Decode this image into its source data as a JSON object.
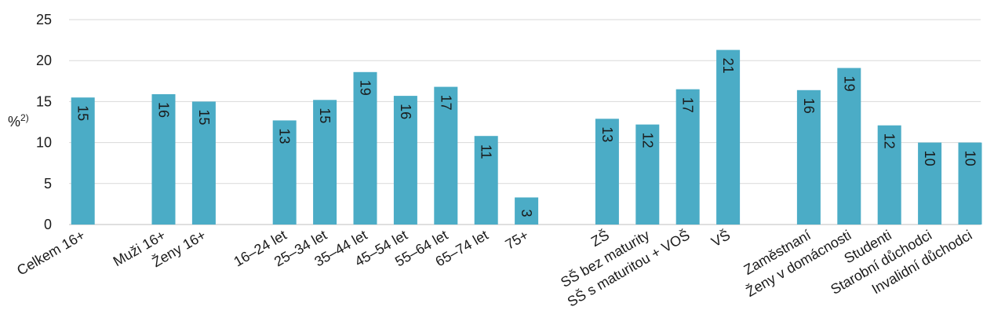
{
  "chart_data": {
    "type": "bar",
    "ylabel": "%",
    "ylabel_superscript": "2)",
    "ylim": [
      0,
      25
    ],
    "yticks": [
      0,
      5,
      10,
      15,
      20,
      25
    ],
    "grid": true,
    "bar_color": "#4bacc6",
    "grid_color": "#d9d9d9",
    "categories": [
      "Celkem 16+",
      "",
      "Muži 16+",
      "Ženy 16+",
      "",
      "16–24 let",
      "25–34 let",
      "35–44 let",
      "45–54 let",
      "55–64 let",
      "65–74 let",
      "75+",
      "",
      "ZŠ",
      "SŠ bez maturity",
      "SŠ s maturitou + VOŠ",
      "VŠ",
      "",
      "Zaměstnaní",
      "Ženy v domácnosti",
      "Studenti",
      "Starobní důchodci",
      "Invalidní důchodci"
    ],
    "values": [
      15.5,
      null,
      15.9,
      15.0,
      null,
      12.7,
      15.2,
      18.6,
      15.7,
      16.8,
      10.8,
      3.3,
      null,
      12.9,
      12.2,
      16.5,
      21.3,
      null,
      16.4,
      19.1,
      12.1,
      10.0,
      10.0
    ],
    "data_labels": [
      "15",
      "",
      "16",
      "15",
      "",
      "13",
      "15",
      "19",
      "16",
      "17",
      "11",
      "3",
      "",
      "13",
      "12",
      "17",
      "21",
      "",
      "16",
      "19",
      "12",
      "10",
      "10"
    ]
  }
}
